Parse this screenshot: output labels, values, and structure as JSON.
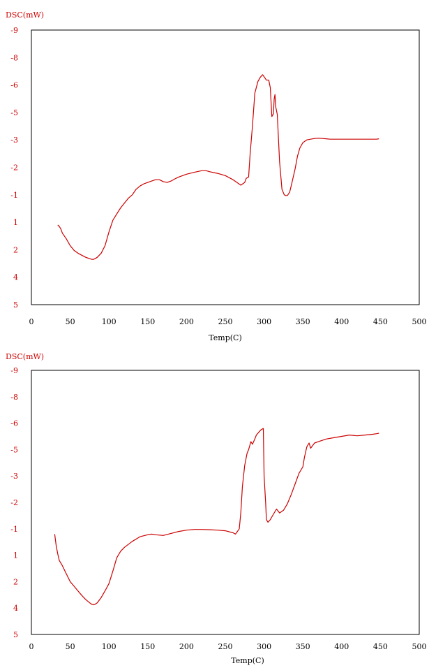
{
  "colors": {
    "accent": "#cc0000",
    "axis": "#000000"
  },
  "chart_data": [
    {
      "type": "line",
      "ylabel": "DSC(mW)",
      "xlabel": "Temp(C)",
      "xlim": [
        0,
        500
      ],
      "x_ticks": [
        "0",
        "50",
        "100",
        "150",
        "200",
        "250",
        "300",
        "350",
        "400",
        "450",
        "500"
      ],
      "y_tick_labels": [
        "-9",
        "-8",
        "-6",
        "-5",
        "-3",
        "-2",
        "-1",
        "1",
        "2",
        "4",
        "5"
      ],
      "grid": false,
      "series": [
        {
          "x": [
            34,
            36,
            38,
            40,
            45,
            50,
            55,
            60,
            65,
            70,
            75,
            78,
            80,
            82,
            85,
            90,
            95,
            100,
            105,
            110,
            115,
            120,
            125,
            130,
            135,
            140,
            145,
            150,
            155,
            160,
            165,
            170,
            175,
            180,
            185,
            190,
            200,
            210,
            220,
            225,
            230,
            240,
            250,
            260,
            265,
            270,
            275,
            277,
            280,
            282,
            285,
            288,
            292,
            295,
            298,
            300,
            303,
            306,
            308,
            310,
            312,
            313,
            314,
            315,
            317,
            320,
            323,
            326,
            328,
            330,
            333,
            336,
            340,
            343,
            346,
            350,
            355,
            360,
            365,
            370,
            375,
            380,
            385,
            390,
            400,
            410,
            420,
            430,
            440,
            445,
            448
          ],
          "y": [
            1.1,
            1.15,
            1.25,
            1.4,
            1.6,
            1.85,
            2.05,
            2.25,
            2.4,
            2.55,
            2.65,
            2.7,
            2.7,
            2.65,
            2.55,
            2.25,
            1.85,
            1.35,
            0.85,
            0.4,
            -0.05,
            -0.4,
            -0.75,
            -1.0,
            -1.2,
            -1.32,
            -1.4,
            -1.45,
            -1.5,
            -1.55,
            -1.55,
            -1.48,
            -1.45,
            -1.5,
            -1.58,
            -1.65,
            -1.75,
            -1.82,
            -1.88,
            -1.88,
            -1.84,
            -1.78,
            -1.7,
            -1.55,
            -1.45,
            -1.35,
            -1.45,
            -1.6,
            -1.65,
            -2.5,
            -4.0,
            -5.7,
            -6.25,
            -6.55,
            -6.75,
            -6.6,
            -6.35,
            -6.35,
            -5.9,
            -4.7,
            -4.9,
            -5.5,
            -5.65,
            -5.2,
            -4.85,
            -2.2,
            -1.2,
            -1.0,
            -0.95,
            -0.95,
            -1.1,
            -1.45,
            -1.95,
            -2.4,
            -2.7,
            -2.9,
            -3.0,
            -3.05,
            -3.1,
            -3.12,
            -3.1,
            -3.08,
            -3.05,
            -3.05,
            -3.05,
            -3.05,
            -3.05,
            -3.05,
            -3.05,
            -3.05,
            -3.08
          ]
        }
      ]
    },
    {
      "type": "line",
      "ylabel": "DSC(mW)",
      "xlabel": "Temp(C)",
      "xlim": [
        0,
        500
      ],
      "x_ticks": [
        "0",
        "50",
        "100",
        "150",
        "200",
        "250",
        "300",
        "350",
        "400",
        "450",
        "500"
      ],
      "y_tick_labels": [
        "-9",
        "-8",
        "-6",
        "-5",
        "-3",
        "-2",
        "-1",
        "1",
        "2",
        "4",
        "5"
      ],
      "grid": false,
      "series": [
        {
          "x": [
            30,
            32,
            34,
            36,
            40,
            45,
            50,
            55,
            60,
            65,
            70,
            75,
            78,
            80,
            82,
            85,
            90,
            95,
            100,
            105,
            110,
            115,
            120,
            130,
            140,
            150,
            155,
            160,
            170,
            180,
            190,
            200,
            210,
            220,
            230,
            240,
            250,
            260,
            263,
            265,
            268,
            270,
            272,
            275,
            278,
            280,
            283,
            285,
            288,
            290,
            293,
            296,
            299,
            300,
            302,
            303,
            305,
            308,
            312,
            316,
            320,
            325,
            330,
            335,
            340,
            345,
            350,
            352,
            355,
            358,
            360,
            365,
            370,
            375,
            380,
            390,
            400,
            410,
            420,
            430,
            440,
            445,
            448
          ],
          "y": [
            -0.6,
            0.3,
            0.9,
            1.2,
            1.4,
            1.7,
            2.0,
            2.35,
            2.7,
            3.05,
            3.35,
            3.6,
            3.72,
            3.75,
            3.72,
            3.6,
            3.2,
            2.7,
            2.15,
            1.6,
            1.1,
            0.7,
            0.4,
            -0.05,
            -0.4,
            -0.55,
            -0.6,
            -0.55,
            -0.5,
            -0.65,
            -0.8,
            -0.9,
            -0.95,
            -0.95,
            -0.93,
            -0.9,
            -0.85,
            -0.7,
            -0.6,
            -0.75,
            -1.0,
            -1.6,
            -2.6,
            -3.8,
            -4.7,
            -5.0,
            -5.3,
            -5.2,
            -5.4,
            -5.55,
            -5.65,
            -5.75,
            -5.8,
            -3.0,
            -2.0,
            -1.35,
            -1.25,
            -1.35,
            -1.55,
            -1.75,
            -1.6,
            -1.7,
            -1.95,
            -2.3,
            -2.7,
            -3.2,
            -3.7,
            -4.4,
            -5.1,
            -5.25,
            -5.05,
            -5.25,
            -5.3,
            -5.35,
            -5.4,
            -5.45,
            -5.5,
            -5.55,
            -5.52,
            -5.55,
            -5.58,
            -5.6,
            -5.62
          ]
        }
      ]
    }
  ]
}
